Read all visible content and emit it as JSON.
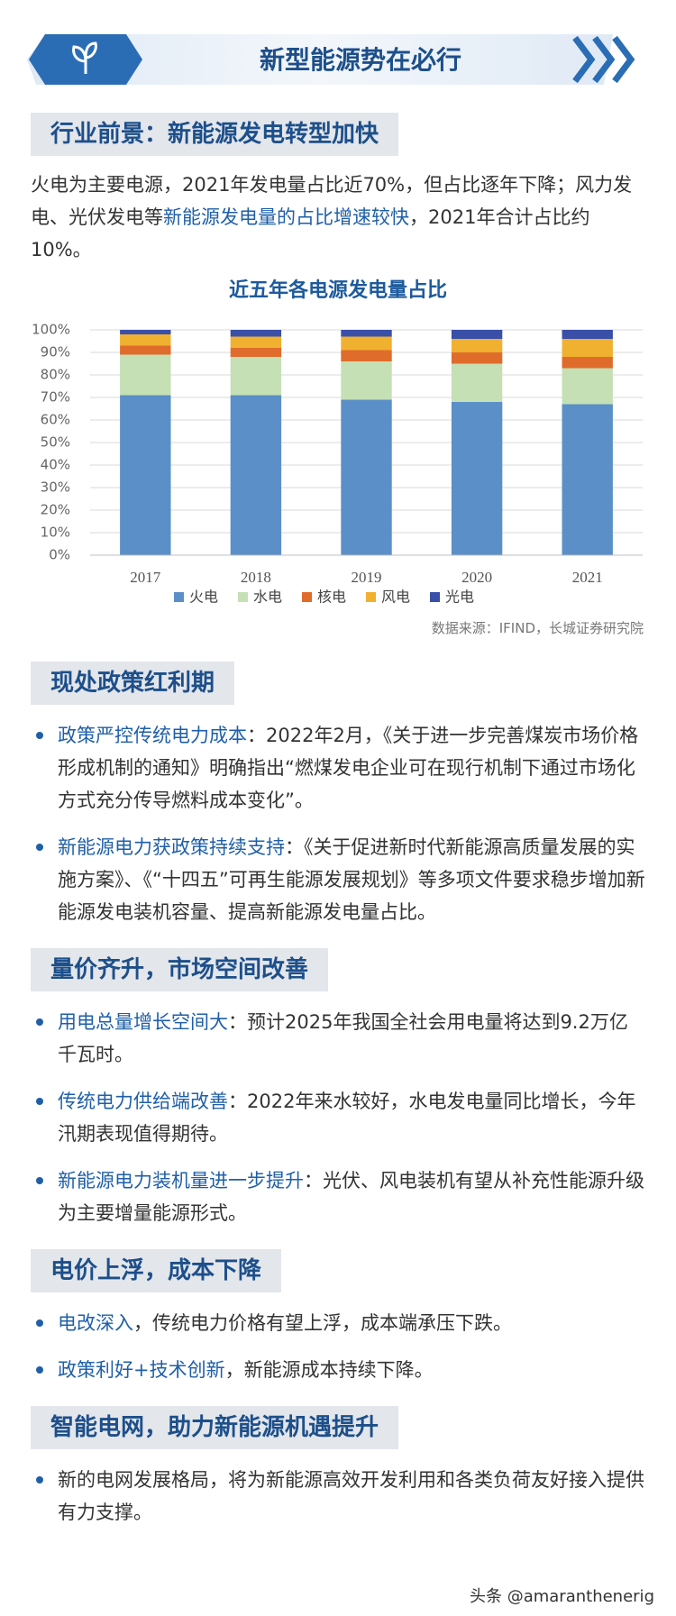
{
  "header": {
    "title": "新型能源势在必行"
  },
  "sections": [
    {
      "heading": "行业前景：新能源发电转型加快",
      "intro": {
        "before": "火电为主要电源，2021年发电量占比近70%，但占比逐年下降；风力发电、光伏发电等",
        "highlight": "新能源发电量的占比增速较快",
        "after": "，2021年合计占比约10%。"
      }
    },
    {
      "heading": "现处政策红利期",
      "bullets": [
        {
          "lead": "政策严控传统电力成本",
          "text": "：2022年2月，《关于进一步完善煤炭市场价格形成机制的通知》明确指出“燃煤发电企业可在现行机制下通过市场化方式充分传导燃料成本变化”。"
        },
        {
          "lead": "新能源电力获政策持续支持",
          "text": "：《关于促进新时代新能源高质量发展的实施方案》、《“十四五”可再生能源发展规划》等多项文件要求稳步增加新能源发电装机容量、提高新能源发电量占比。"
        }
      ]
    },
    {
      "heading": "量价齐升，市场空间改善",
      "bullets": [
        {
          "lead": "用电总量增长空间大",
          "text": "：预计2025年我国全社会用电量将达到9.2万亿千瓦时。"
        },
        {
          "lead": "传统电力供给端改善",
          "text": "：2022年来水较好，水电发电量同比增长，今年汛期表现值得期待。"
        },
        {
          "lead": "新能源电力装机量进一步提升",
          "text": "：光伏、风电装机有望从补充性能源升级为主要增量能源形式。"
        }
      ]
    },
    {
      "heading": "电价上浮，成本下降",
      "bullets": [
        {
          "lead": "电改深入",
          "text": "，传统电力价格有望上浮，成本端承压下跌。"
        },
        {
          "lead": "政策利好+技术创新",
          "text": "，新能源成本持续下降。"
        }
      ]
    },
    {
      "heading": "智能电网，助力新能源机遇提升",
      "bullets": [
        {
          "text": "新的电网发展格局，将为新能源高效开发利用和各类负荷友好接入提供有力支撑。"
        }
      ]
    }
  ],
  "chart_data": {
    "type": "stacked_bar",
    "title": "近五年各电源发电量占比",
    "categories": [
      "2017",
      "2018",
      "2019",
      "2020",
      "2021"
    ],
    "series": [
      {
        "name": "火电",
        "color": "#5b8fc7",
        "values": [
          71,
          71,
          69,
          68,
          67
        ]
      },
      {
        "name": "水电",
        "color": "#c5e0b4",
        "values": [
          18,
          17,
          17,
          17,
          16
        ]
      },
      {
        "name": "核电",
        "color": "#e06c2c",
        "values": [
          4,
          4,
          5,
          5,
          5
        ]
      },
      {
        "name": "风电",
        "color": "#f0b030",
        "values": [
          5,
          5,
          6,
          6,
          8
        ]
      },
      {
        "name": "光电",
        "color": "#3a4fa8",
        "values": [
          2,
          3,
          3,
          4,
          4
        ]
      }
    ],
    "ylim": [
      0,
      100
    ],
    "yticks": [
      {
        "value": 0,
        "label": "0%"
      },
      {
        "value": 10,
        "label": "10%"
      },
      {
        "value": 20,
        "label": "20%"
      },
      {
        "value": 30,
        "label": "30%"
      },
      {
        "value": 40,
        "label": "40%"
      },
      {
        "value": 50,
        "label": "50%"
      },
      {
        "value": 60,
        "label": "60%"
      },
      {
        "value": 70,
        "label": "70%"
      },
      {
        "value": 80,
        "label": "80%"
      },
      {
        "value": 90,
        "label": "90%"
      },
      {
        "value": 100,
        "label": "100%"
      }
    ],
    "grid": true,
    "source": "数据来源：IFIND，长城证券研究院"
  },
  "footer": {
    "watermark": "头条 @amaranthenerig"
  }
}
